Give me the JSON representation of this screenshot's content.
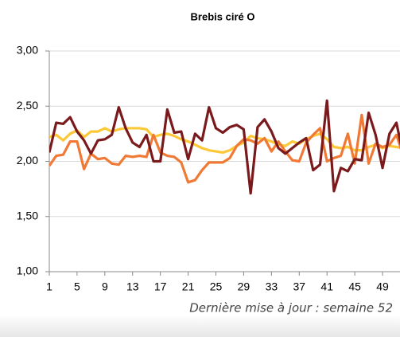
{
  "chart_data": {
    "type": "line",
    "title": "Brebis ciré O",
    "note": "Dernière mise à jour : semaine 52",
    "x": [
      1,
      2,
      3,
      4,
      5,
      6,
      7,
      8,
      9,
      10,
      11,
      12,
      13,
      14,
      15,
      16,
      17,
      18,
      19,
      20,
      21,
      22,
      23,
      24,
      25,
      26,
      27,
      28,
      29,
      30,
      31,
      32,
      33,
      34,
      35,
      36,
      37,
      38,
      39,
      40,
      41,
      42,
      43,
      44,
      45,
      46,
      47,
      48,
      49,
      50,
      51,
      52
    ],
    "series": [
      {
        "color": "#fcc838",
        "values": [
          2.22,
          2.24,
          2.19,
          2.25,
          2.28,
          2.22,
          2.27,
          2.27,
          2.3,
          2.27,
          2.29,
          2.3,
          2.3,
          2.3,
          2.29,
          2.22,
          2.24,
          2.25,
          2.23,
          2.2,
          2.18,
          2.15,
          2.12,
          2.1,
          2.09,
          2.08,
          2.1,
          2.14,
          2.17,
          2.23,
          2.21,
          2.2,
          2.18,
          2.15,
          2.14,
          2.18,
          2.16,
          2.2,
          2.23,
          2.25,
          2.2,
          2.13,
          2.12,
          2.13,
          2.1,
          2.1,
          2.13,
          2.15,
          2.12,
          2.14,
          2.13,
          2.12
        ]
      },
      {
        "color": "#f07a35",
        "values": [
          1.96,
          2.05,
          2.06,
          2.18,
          2.18,
          1.93,
          2.07,
          2.02,
          2.03,
          1.98,
          1.97,
          2.05,
          2.04,
          2.05,
          2.04,
          2.24,
          2.08,
          2.05,
          2.04,
          1.99,
          1.81,
          1.83,
          1.92,
          1.99,
          1.99,
          1.99,
          2.03,
          2.14,
          2.2,
          2.19,
          2.16,
          2.21,
          2.09,
          2.18,
          2.09,
          2.01,
          2.0,
          2.17,
          2.24,
          2.3,
          2.0,
          2.03,
          2.05,
          2.25,
          1.98,
          2.42,
          1.98,
          2.16,
          2.13,
          2.15,
          2.24,
          2.05
        ]
      },
      {
        "color": "#7a1a1c",
        "values": [
          2.08,
          2.35,
          2.34,
          2.4,
          2.27,
          2.19,
          2.07,
          2.19,
          2.2,
          2.24,
          2.49,
          2.3,
          2.17,
          2.13,
          2.24,
          2.0,
          2.0,
          2.47,
          2.26,
          2.27,
          2.02,
          2.25,
          2.19,
          2.49,
          2.3,
          2.26,
          2.31,
          2.33,
          2.29,
          1.71,
          2.31,
          2.38,
          2.27,
          2.12,
          2.07,
          2.12,
          2.17,
          2.21,
          1.92,
          1.97,
          2.55,
          1.73,
          1.94,
          1.91,
          2.02,
          2.01,
          2.44,
          2.24,
          1.94,
          2.25,
          2.35,
          2.05
        ]
      }
    ],
    "xlim": [
      1,
      52
    ],
    "xticks": [
      1,
      5,
      9,
      13,
      17,
      21,
      25,
      29,
      33,
      37,
      41,
      45,
      49
    ],
    "ylim": [
      1,
      3
    ],
    "yticks": [
      {
        "value": 1,
        "label": "1,00"
      },
      {
        "value": 1.5,
        "label": "1,50"
      },
      {
        "value": 2,
        "label": "2,00"
      },
      {
        "value": 2.5,
        "label": "2,50"
      },
      {
        "value": 3,
        "label": "3,00"
      }
    ],
    "grid": true
  }
}
